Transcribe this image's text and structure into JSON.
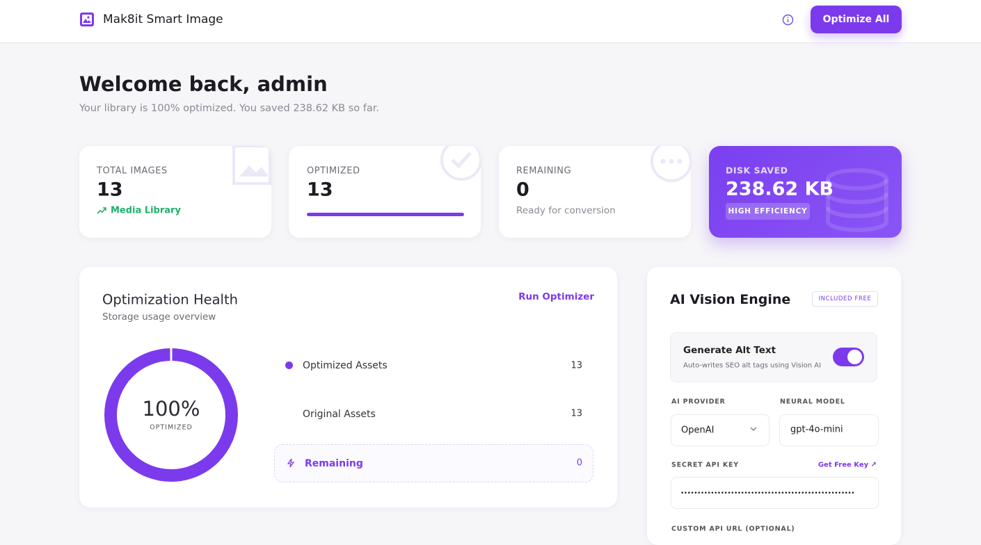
{
  "header": {
    "brand": "Mak8it Smart Image",
    "button": "Optimize All"
  },
  "welcome": {
    "title": "Welcome back, admin",
    "subtitle": "Your library is 100% optimized. You saved 238.62 KB so far."
  },
  "stats": [
    {
      "label": "TOTAL IMAGES",
      "value": "13",
      "note": "Media Library"
    },
    {
      "label": "OPTIMIZED",
      "value": "13"
    },
    {
      "label": "REMAINING",
      "value": "0",
      "note": "Ready for conversion"
    },
    {
      "label": "DISK SAVED",
      "value": "238.62 KB",
      "badge": "HIGH EFFICIENCY"
    }
  ],
  "health": {
    "title": "Optimization Health",
    "subtitle": "Storage usage overview",
    "action": "Run Optimizer",
    "percent": "100%",
    "percent_label": "OPTIMIZED",
    "rows": [
      {
        "label": "Optimized Assets",
        "value": "13"
      },
      {
        "label": "Original Assets",
        "value": "13"
      },
      {
        "label": "Remaining",
        "value": "0"
      }
    ]
  },
  "ai": {
    "title": "AI Vision Engine",
    "badge": "INCLUDED FREE",
    "toggle_title": "Generate Alt Text",
    "toggle_desc": "Auto-writes SEO alt tags using Vision AI",
    "provider_label": "AI PROVIDER",
    "provider": "OpenAI",
    "model_label": "NEURAL MODEL",
    "model": "gpt-4o-mini",
    "key_label": "SECRET API KEY",
    "key_link": "Get Free Key ↗",
    "key_value": "••••••••••••••••••••••••••••••••••••••••••••••••••••",
    "url_label": "CUSTOM API URL (OPTIONAL)"
  }
}
